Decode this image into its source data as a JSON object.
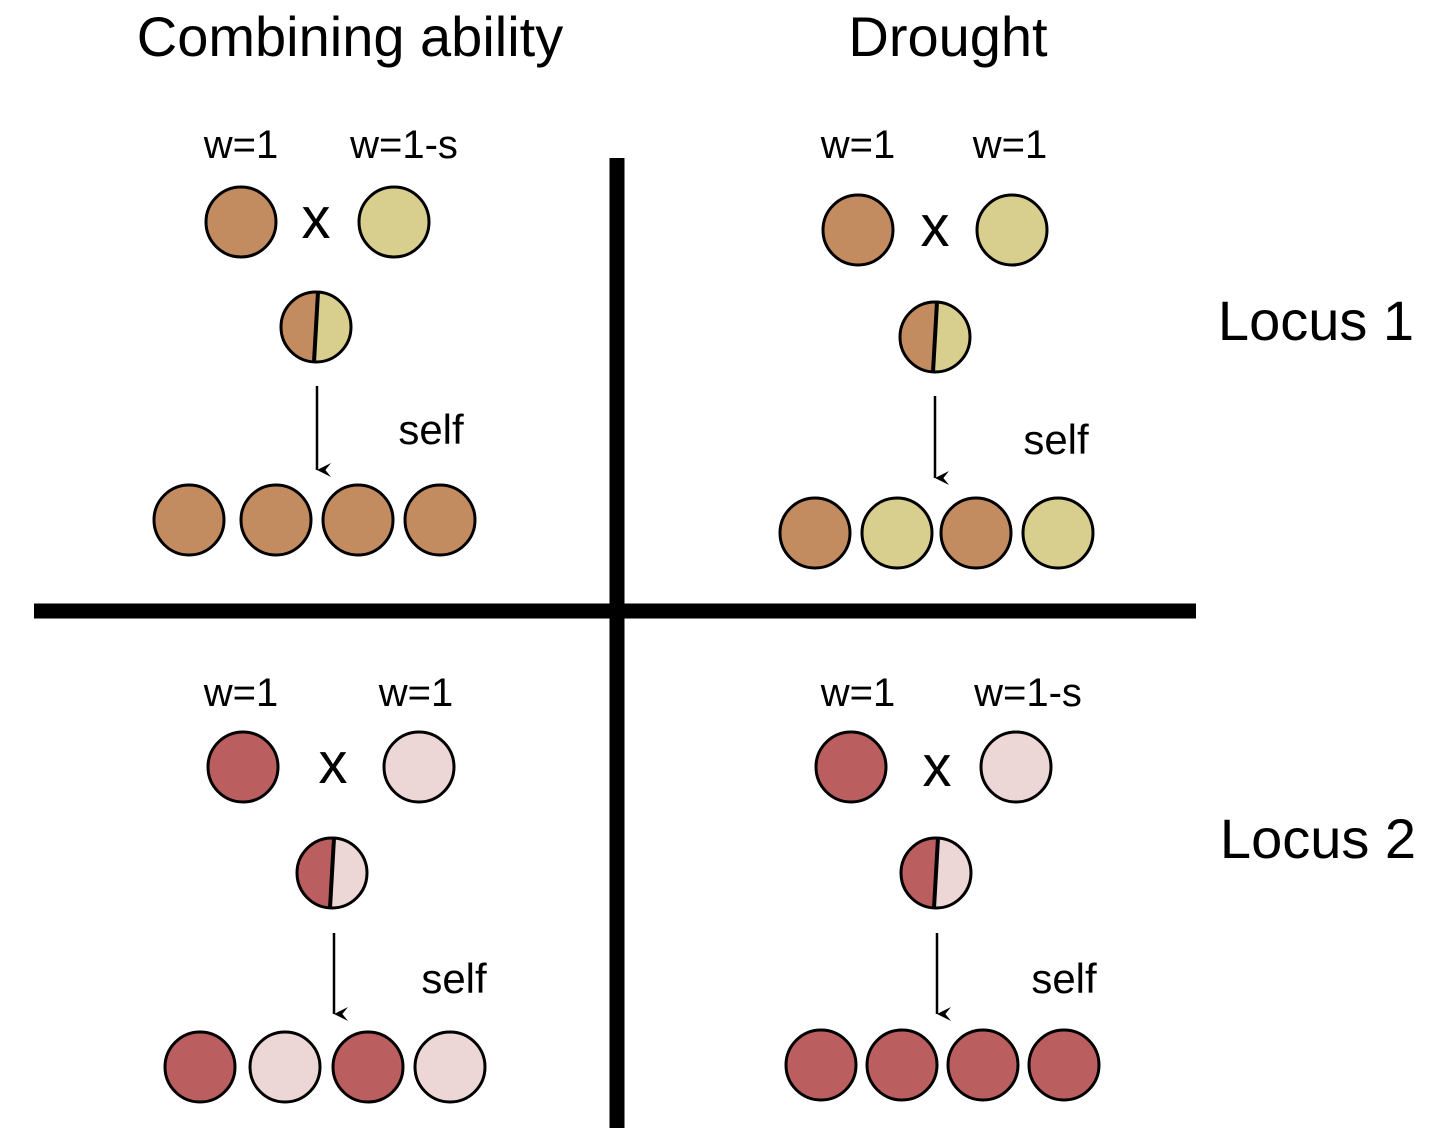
{
  "headers": {
    "left_column": "Combining ability",
    "right_column": "Drought"
  },
  "row_labels": {
    "top": "Locus 1",
    "bottom": "Locus 2"
  },
  "colors": {
    "locus1_allele_a": "#C38C60",
    "locus1_allele_b": "#D8CF8E",
    "locus2_allele_a": "#BB5E60",
    "locus2_allele_b": "#EDD6D6"
  },
  "panels": {
    "combining_locus1": {
      "parent1_fitness": "w=1",
      "parent2_fitness": "w=1-s",
      "cross_symbol": "x",
      "self_label": "self",
      "offspring": [
        "a",
        "a",
        "a",
        "a"
      ]
    },
    "drought_locus1": {
      "parent1_fitness": "w=1",
      "parent2_fitness": "w=1",
      "cross_symbol": "x",
      "self_label": "self",
      "offspring": [
        "a",
        "b",
        "a",
        "b"
      ]
    },
    "combining_locus2": {
      "parent1_fitness": "w=1",
      "parent2_fitness": "w=1",
      "cross_symbol": "x",
      "self_label": "self",
      "offspring": [
        "a",
        "b",
        "a",
        "b"
      ]
    },
    "drought_locus2": {
      "parent1_fitness": "w=1",
      "parent2_fitness": "w=1-s",
      "cross_symbol": "x",
      "self_label": "self",
      "offspring": [
        "a",
        "a",
        "a",
        "a"
      ]
    }
  }
}
